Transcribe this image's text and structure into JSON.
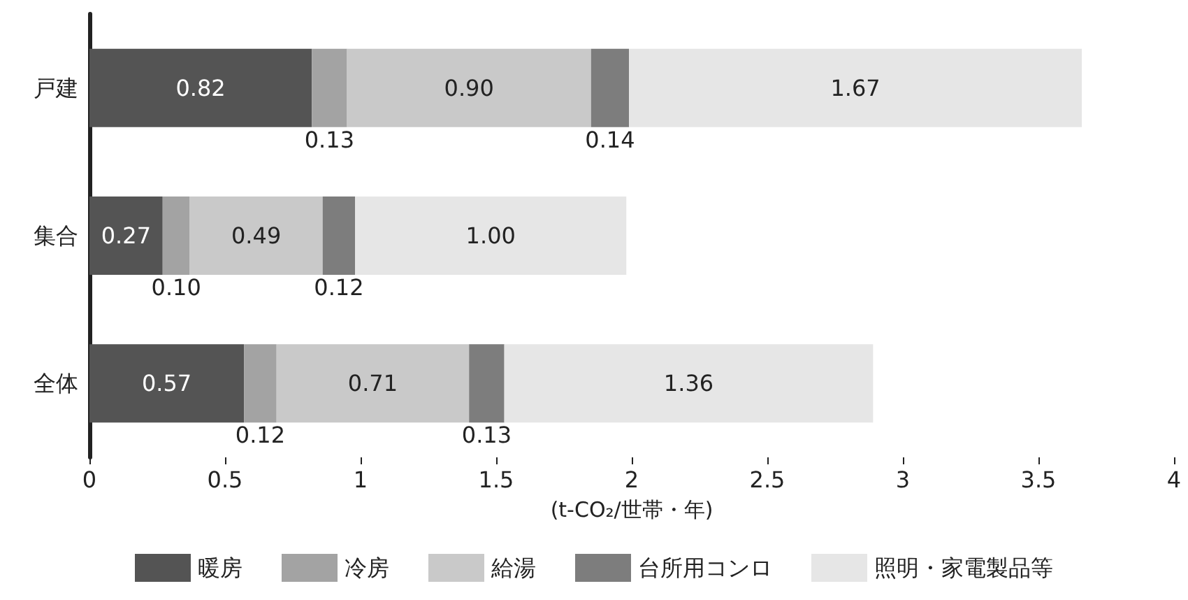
{
  "chart_data": {
    "type": "bar",
    "orientation": "horizontal",
    "stacked": true,
    "categories": [
      "戸建",
      "集合",
      "全体"
    ],
    "xlabel": "(t-CO₂/世帯・年)",
    "xlim": [
      0,
      4
    ],
    "xticks": [
      0,
      0.5,
      1,
      1.5,
      2,
      2.5,
      3,
      3.5,
      4
    ],
    "grid": false,
    "legend": "bottom",
    "series": [
      {
        "name": "暖房",
        "color": "#545454",
        "values": [
          0.82,
          0.27,
          0.57
        ],
        "value_labels": [
          "0.82",
          "0.27",
          "0.57"
        ]
      },
      {
        "name": "冷房",
        "color": "#a3a3a3",
        "values": [
          0.13,
          0.1,
          0.12
        ],
        "value_labels": [
          "0.13",
          "0.10",
          "0.12"
        ]
      },
      {
        "name": "給湯",
        "color": "#c9c9c9",
        "values": [
          0.9,
          0.49,
          0.71
        ],
        "value_labels": [
          "0.90",
          "0.49",
          "0.71"
        ]
      },
      {
        "name": "台所用コンロ",
        "color": "#7d7d7d",
        "values": [
          0.14,
          0.12,
          0.13
        ],
        "value_labels": [
          "0.14",
          "0.12",
          "0.13"
        ]
      },
      {
        "name": "照明・家電製品等",
        "color": "#e6e6e6",
        "values": [
          1.67,
          1.0,
          1.36
        ],
        "value_labels": [
          "1.67",
          "1.00",
          "1.36"
        ]
      }
    ]
  }
}
